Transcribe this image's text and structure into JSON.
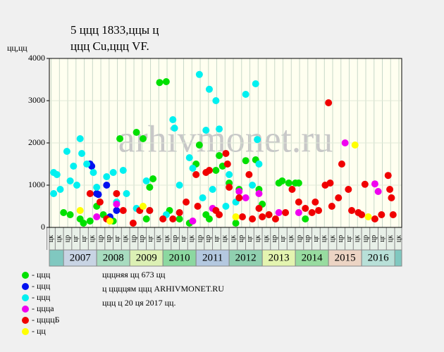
{
  "chart_data": {
    "type": "scatter",
    "title": "5 ццц 1833,ццы ц",
    "subtitle": "ццц Cu,ццц VF.",
    "y_label": "цц,цц",
    "watermark": "arhivmonet.ru",
    "xlim": [
      2006.57,
      2017.21
    ],
    "ylim": [
      0,
      4000
    ],
    "yticks": [
      0,
      1000,
      2000,
      3000,
      4000
    ],
    "grid": true,
    "xticks": [
      {
        "value": 2006.625,
        "label": "цк"
      },
      {
        "value": 2006.875,
        "label": "цк"
      },
      {
        "value": 2007.125,
        "label": "цр"
      },
      {
        "value": 2007.375,
        "label": "цг"
      },
      {
        "value": 2007.625,
        "label": "цг"
      },
      {
        "value": 2007.875,
        "label": "цк"
      },
      {
        "value": 2008.125,
        "label": "цр"
      },
      {
        "value": 2008.375,
        "label": "цр"
      },
      {
        "value": 2008.625,
        "label": "цг"
      },
      {
        "value": 2008.875,
        "label": "цк"
      },
      {
        "value": 2009.125,
        "label": "цр"
      },
      {
        "value": 2009.375,
        "label": "цр"
      },
      {
        "value": 2009.625,
        "label": "цг"
      },
      {
        "value": 2009.875,
        "label": "цк"
      },
      {
        "value": 2010.125,
        "label": "цк"
      },
      {
        "value": 2010.375,
        "label": "цр"
      },
      {
        "value": 2010.625,
        "label": "цг"
      },
      {
        "value": 2010.875,
        "label": "цк"
      },
      {
        "value": 2011.125,
        "label": "цр"
      },
      {
        "value": 2011.375,
        "label": "цр"
      },
      {
        "value": 2011.625,
        "label": "цг"
      },
      {
        "value": 2011.875,
        "label": "цк"
      },
      {
        "value": 2012.125,
        "label": "цк"
      },
      {
        "value": 2012.375,
        "label": "цр"
      },
      {
        "value": 2012.625,
        "label": "цг"
      },
      {
        "value": 2012.875,
        "label": "цк"
      },
      {
        "value": 2013.125,
        "label": "цк"
      },
      {
        "value": 2013.375,
        "label": "цр"
      },
      {
        "value": 2013.625,
        "label": "цг"
      },
      {
        "value": 2013.875,
        "label": "цк"
      },
      {
        "value": 2014.125,
        "label": "цр"
      },
      {
        "value": 2014.375,
        "label": "цр"
      },
      {
        "value": 2014.625,
        "label": "цг"
      },
      {
        "value": 2014.875,
        "label": "цк"
      },
      {
        "value": 2015.125,
        "label": "цк"
      },
      {
        "value": 2015.375,
        "label": "цр"
      },
      {
        "value": 2015.625,
        "label": "цг"
      },
      {
        "value": 2015.875,
        "label": "цк"
      },
      {
        "value": 2016.125,
        "label": "цр"
      },
      {
        "value": 2016.375,
        "label": "цр"
      },
      {
        "value": 2016.625,
        "label": "цг"
      },
      {
        "value": 2016.875,
        "label": "цк"
      },
      {
        "value": 2017.125,
        "label": "цк"
      }
    ],
    "years": [
      2007,
      2008,
      2009,
      2010,
      2011,
      2012,
      2013,
      2014,
      2015,
      2016
    ],
    "year_colors": [
      "#c8d4e4",
      "#a8dcc0",
      "#dcf0b4",
      "#8cd8a0",
      "#b4c8e0",
      "#90d0b0",
      "#e4f4b0",
      "#98dca0",
      "#ecd4c4",
      "#b8e0d8"
    ],
    "series": [
      {
        "name": "- ццц",
        "color": "#00e000",
        "x": [
          2007.0,
          2007.2,
          2007.5,
          2007.6,
          2007.8,
          2008.0,
          2008.2,
          2008.5,
          2008.7,
          2009.2,
          2009.4,
          2009.5,
          2009.6,
          2009.7,
          2009.9,
          2010.1,
          2010.2,
          2010.5,
          2010.8,
          2011.0,
          2011.1,
          2011.3,
          2011.6,
          2011.7,
          2011.8,
          2012.0,
          2012.3,
          2012.5,
          2012.8,
          2012.9,
          2013.0,
          2013.2,
          2013.5,
          2013.6,
          2013.8,
          2014.0,
          2014.1,
          2014.3,
          2012.2,
          2011.4
        ],
        "y": [
          350,
          300,
          200,
          100,
          150,
          500,
          300,
          150,
          2100,
          2250,
          2100,
          200,
          950,
          1150,
          3430,
          3450,
          400,
          200,
          100,
          1500,
          1950,
          300,
          1350,
          1700,
          1450,
          1050,
          900,
          1580,
          1600,
          900,
          550,
          300,
          1050,
          1100,
          1050,
          1050,
          1050,
          200,
          100,
          200
        ]
      },
      {
        "name": "- ццц",
        "color": "#0010f0",
        "x": [
          2007.8,
          2007.85,
          2008.0,
          2008.05,
          2008.3,
          2008.6,
          2008.4
        ],
        "y": [
          1500,
          1450,
          800,
          780,
          1000,
          400,
          250
        ]
      },
      {
        "name": "- ццц",
        "color": "#00f0f0",
        "x": [
          2006.7,
          2006.8,
          2006.7,
          2006.9,
          2007.1,
          2007.2,
          2007.3,
          2007.4,
          2007.5,
          2007.55,
          2007.7,
          2007.9,
          2008.0,
          2008.3,
          2008.5,
          2008.6,
          2008.8,
          2008.9,
          2009.2,
          2009.5,
          2009.6,
          2010.1,
          2010.3,
          2010.35,
          2010.5,
          2010.8,
          2010.9,
          2011.1,
          2011.3,
          2011.4,
          2011.6,
          2011.7,
          2011.5,
          2011.2,
          2012.0,
          2012.5,
          2012.7,
          2012.8,
          2012.85,
          2012.9,
          2012.2,
          2011.9
        ],
        "y": [
          1300,
          1250,
          800,
          900,
          1800,
          1100,
          1450,
          1000,
          2100,
          1750,
          1500,
          1300,
          950,
          1200,
          1300,
          600,
          1350,
          800,
          450,
          1100,
          400,
          300,
          2550,
          2350,
          1000,
          1650,
          1400,
          3620,
          2300,
          3270,
          3000,
          2330,
          900,
          700,
          1250,
          3150,
          1000,
          3400,
          2080,
          1500,
          600,
          500
        ]
      },
      {
        "name": "- ццца",
        "color": "#f000f0",
        "x": [
          2008.0,
          2010.9,
          2011.5,
          2012.3,
          2012.5,
          2012.9,
          2013.5,
          2015.5,
          2016.4,
          2016.5,
          2014.1,
          2008.6
        ],
        "y": [
          250,
          150,
          450,
          850,
          700,
          800,
          350,
          2000,
          1030,
          850,
          350,
          550
        ]
      },
      {
        "name": "- ццццБ",
        "color": "#f00000",
        "x": [
          2007.8,
          2008.1,
          2008.3,
          2008.6,
          2008.8,
          2009.1,
          2009.3,
          2009.6,
          2010.0,
          2010.3,
          2010.5,
          2010.7,
          2011.0,
          2011.05,
          2011.3,
          2011.4,
          2011.6,
          2011.7,
          2011.9,
          2011.95,
          2012.0,
          2012.3,
          2012.4,
          2012.6,
          2012.7,
          2012.9,
          2013.2,
          2013.4,
          2013.7,
          2013.9,
          2014.1,
          2014.3,
          2014.5,
          2014.7,
          2014.9,
          2015.0,
          2015.05,
          2015.1,
          2015.3,
          2015.4,
          2015.6,
          2015.7,
          2015.9,
          2016.0,
          2016.1,
          2016.4,
          2016.6,
          2016.8,
          2016.85,
          2016.9,
          2016.95,
          2014.6,
          2013.0
        ],
        "y": [
          800,
          600,
          200,
          800,
          400,
          100,
          400,
          400,
          200,
          200,
          350,
          600,
          1250,
          500,
          1300,
          1350,
          400,
          300,
          1750,
          1500,
          950,
          700,
          250,
          1250,
          200,
          450,
          300,
          200,
          350,
          900,
          600,
          450,
          350,
          400,
          1000,
          2950,
          1050,
          500,
          700,
          1500,
          900,
          400,
          350,
          300,
          1020,
          200,
          300,
          1230,
          900,
          700,
          300,
          600,
          250
        ]
      },
      {
        "name": "- цц",
        "color": "#ffff00",
        "x": [
          2007.5,
          2008.4,
          2009.4,
          2012.2,
          2015.8,
          2016.2
        ],
        "y": [
          400,
          150,
          500,
          250,
          1950,
          250
        ]
      }
    ],
    "notes": [
      "цццняя цц 673 цц",
      "ц ццццям ццц ARHIVMONET.RU",
      "ццц ц 20 ця 2017 цц."
    ]
  }
}
